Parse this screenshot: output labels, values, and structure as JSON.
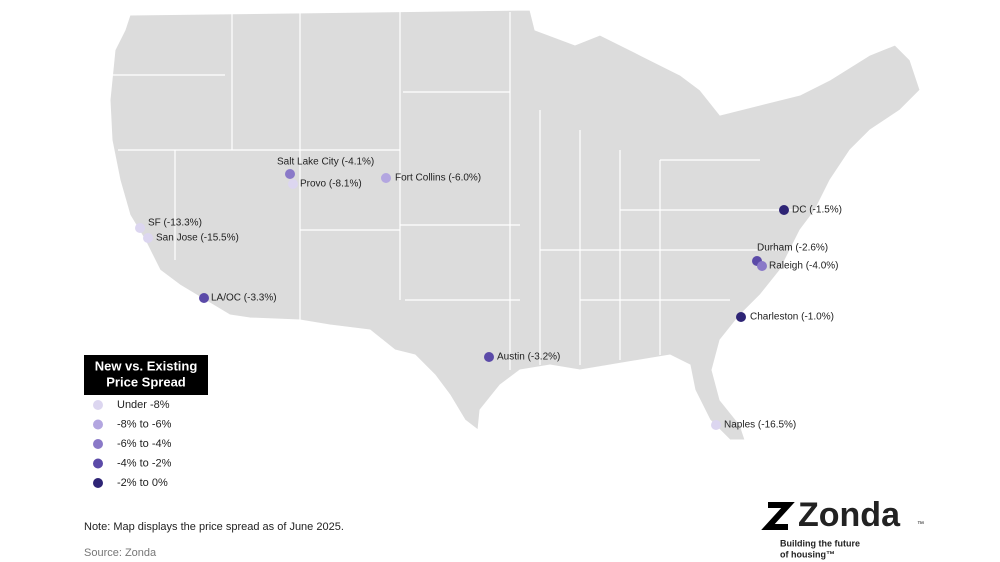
{
  "map": {
    "cities": [
      {
        "label": "SF (-13.3%)",
        "value": -13.3
      },
      {
        "label": "San Jose (-15.5%)",
        "value": -15.5
      },
      {
        "label": "Salt Lake City (-4.1%)",
        "value": -4.1
      },
      {
        "label": "Provo (-8.1%)",
        "value": -8.1
      },
      {
        "label": "Fort Collins (-6.0%)",
        "value": -6.0
      },
      {
        "label": "LA/OC (-3.3%)",
        "value": -3.3
      },
      {
        "label": "Austin (-3.2%)",
        "value": -3.2
      },
      {
        "label": "DC (-1.5%)",
        "value": -1.5
      },
      {
        "label": "Durham (-2.6%)",
        "value": -2.6
      },
      {
        "label": "Raleigh (-4.0%)",
        "value": -4.0
      },
      {
        "label": "Charleston (-1.0%)",
        "value": -1.0
      },
      {
        "label": "Naples (-16.5%)",
        "value": -16.5
      }
    ],
    "legend": {
      "title": [
        "New vs. Existing",
        "Price Spread"
      ],
      "items": [
        {
          "label": "Under -8%",
          "range": [
            null,
            -8
          ],
          "color": "#dcd6f0"
        },
        {
          "label": "-8% to -6%",
          "range": [
            -8,
            -6
          ],
          "color": "#b3a6e0"
        },
        {
          "label": "-6% to -4%",
          "range": [
            -6,
            -4
          ],
          "color": "#8a79c8"
        },
        {
          "label": "-4% to -2%",
          "range": [
            -4,
            -2
          ],
          "color": "#5b4aa8"
        },
        {
          "label": "-2% to 0%",
          "range": [
            -2,
            0
          ],
          "color": "#2e2475"
        }
      ]
    }
  },
  "note": "Note: Map displays the price spread as of June 2025.",
  "source": "Source: Zonda",
  "logo": {
    "name": "Zonda",
    "mark": "™",
    "tagline": [
      "Building the future",
      "of housing™"
    ]
  }
}
